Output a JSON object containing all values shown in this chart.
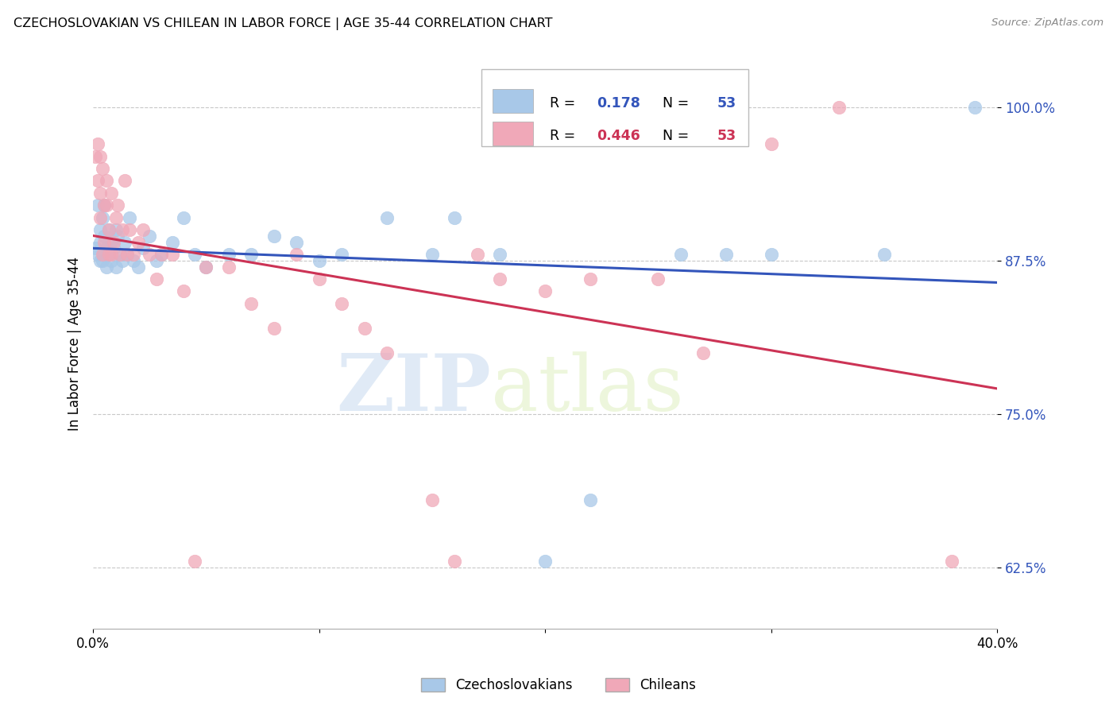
{
  "title": "CZECHOSLOVAKIAN VS CHILEAN IN LABOR FORCE | AGE 35-44 CORRELATION CHART",
  "source": "Source: ZipAtlas.com",
  "ylabel": "In Labor Force | Age 35-44",
  "xlim": [
    0.0,
    0.4
  ],
  "ylim": [
    0.575,
    1.04
  ],
  "yticks": [
    0.625,
    0.75,
    0.875,
    1.0
  ],
  "ytick_labels": [
    "62.5%",
    "75.0%",
    "87.5%",
    "100.0%"
  ],
  "xticks": [
    0.0,
    0.1,
    0.2,
    0.3,
    0.4
  ],
  "xtick_labels": [
    "0.0%",
    "",
    "",
    "",
    "40.0%"
  ],
  "blue_color": "#a8c8e8",
  "pink_color": "#f0a8b8",
  "blue_line_color": "#3355bb",
  "pink_line_color": "#cc3355",
  "R_blue": 0.178,
  "N_blue": 53,
  "R_pink": 0.446,
  "N_pink": 53,
  "blue_scatter_x": [
    0.001,
    0.002,
    0.002,
    0.003,
    0.003,
    0.003,
    0.004,
    0.004,
    0.005,
    0.005,
    0.005,
    0.006,
    0.006,
    0.007,
    0.007,
    0.008,
    0.008,
    0.009,
    0.01,
    0.01,
    0.011,
    0.012,
    0.013,
    0.014,
    0.015,
    0.016,
    0.018,
    0.02,
    0.022,
    0.025,
    0.028,
    0.03,
    0.035,
    0.04,
    0.045,
    0.05,
    0.06,
    0.07,
    0.08,
    0.09,
    0.1,
    0.11,
    0.13,
    0.15,
    0.16,
    0.18,
    0.2,
    0.22,
    0.26,
    0.28,
    0.3,
    0.35,
    0.39
  ],
  "blue_scatter_y": [
    0.885,
    0.88,
    0.92,
    0.875,
    0.89,
    0.9,
    0.875,
    0.91,
    0.88,
    0.895,
    0.92,
    0.885,
    0.87,
    0.9,
    0.88,
    0.89,
    0.875,
    0.885,
    0.87,
    0.9,
    0.895,
    0.88,
    0.875,
    0.89,
    0.88,
    0.91,
    0.875,
    0.87,
    0.885,
    0.895,
    0.875,
    0.88,
    0.89,
    0.91,
    0.88,
    0.87,
    0.88,
    0.88,
    0.895,
    0.89,
    0.875,
    0.88,
    0.91,
    0.88,
    0.91,
    0.88,
    0.63,
    0.68,
    0.88,
    0.88,
    0.88,
    0.88,
    1.0
  ],
  "pink_scatter_x": [
    0.001,
    0.002,
    0.002,
    0.003,
    0.003,
    0.003,
    0.004,
    0.004,
    0.005,
    0.005,
    0.006,
    0.006,
    0.007,
    0.007,
    0.008,
    0.008,
    0.009,
    0.01,
    0.011,
    0.012,
    0.013,
    0.014,
    0.015,
    0.016,
    0.018,
    0.02,
    0.022,
    0.025,
    0.028,
    0.03,
    0.035,
    0.04,
    0.045,
    0.05,
    0.06,
    0.07,
    0.08,
    0.09,
    0.1,
    0.11,
    0.12,
    0.13,
    0.15,
    0.16,
    0.17,
    0.18,
    0.2,
    0.22,
    0.25,
    0.27,
    0.3,
    0.33,
    0.38
  ],
  "pink_scatter_y": [
    0.96,
    0.97,
    0.94,
    0.93,
    0.91,
    0.96,
    0.88,
    0.95,
    0.92,
    0.89,
    0.92,
    0.94,
    0.9,
    0.88,
    0.88,
    0.93,
    0.89,
    0.91,
    0.92,
    0.88,
    0.9,
    0.94,
    0.88,
    0.9,
    0.88,
    0.89,
    0.9,
    0.88,
    0.86,
    0.88,
    0.88,
    0.85,
    0.63,
    0.87,
    0.87,
    0.84,
    0.82,
    0.88,
    0.86,
    0.84,
    0.82,
    0.8,
    0.68,
    0.63,
    0.88,
    0.86,
    0.85,
    0.86,
    0.86,
    0.8,
    0.97,
    1.0,
    0.63
  ],
  "watermark_zip": "ZIP",
  "watermark_atlas": "atlas",
  "figsize": [
    14.06,
    8.92
  ],
  "dpi": 100
}
